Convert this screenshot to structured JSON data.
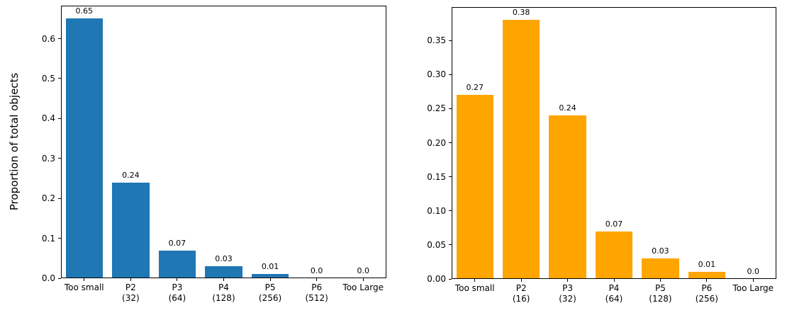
{
  "figure": {
    "background": "#ffffff",
    "axis_color": "#000000",
    "text_color": "#000000"
  },
  "chart_data": [
    {
      "type": "bar",
      "title": "",
      "xlabel": "",
      "ylabel": "Proportion of total objects",
      "bar_color": "#1f77b4",
      "categories": [
        [
          "Too small"
        ],
        [
          "P2",
          "(32)"
        ],
        [
          "P3",
          "(64)"
        ],
        [
          "P4",
          "(128)"
        ],
        [
          "P5",
          "(256)"
        ],
        [
          "P6",
          "(512)"
        ],
        [
          "Too Large"
        ]
      ],
      "values": [
        0.65,
        0.24,
        0.07,
        0.03,
        0.01,
        0.0,
        0.0
      ],
      "value_labels": [
        "0.65",
        "0.24",
        "0.07",
        "0.03",
        "0.01",
        "0.0",
        "0.0"
      ],
      "yticks": [
        0.0,
        0.1,
        0.2,
        0.3,
        0.4,
        0.5,
        0.6
      ],
      "ytick_labels": [
        "0.0",
        "0.1",
        "0.2",
        "0.3",
        "0.4",
        "0.5",
        "0.6"
      ],
      "ylim": [
        0,
        0.6825
      ],
      "grid": false,
      "legend": null
    },
    {
      "type": "bar",
      "title": "",
      "xlabel": "",
      "ylabel": "",
      "bar_color": "#ffa500",
      "categories": [
        [
          "Too small"
        ],
        [
          "P2",
          "(16)"
        ],
        [
          "P3",
          "(32)"
        ],
        [
          "P4",
          "(64)"
        ],
        [
          "P5",
          "(128)"
        ],
        [
          "P6",
          "(256)"
        ],
        [
          "Too Large"
        ]
      ],
      "values": [
        0.27,
        0.38,
        0.24,
        0.07,
        0.03,
        0.01,
        0.0
      ],
      "value_labels": [
        "0.27",
        "0.38",
        "0.24",
        "0.07",
        "0.03",
        "0.01",
        "0.0"
      ],
      "yticks": [
        0.0,
        0.05,
        0.1,
        0.15,
        0.2,
        0.25,
        0.3,
        0.35
      ],
      "ytick_labels": [
        "0.00",
        "0.05",
        "0.10",
        "0.15",
        "0.20",
        "0.25",
        "0.30",
        "0.35"
      ],
      "ylim": [
        0,
        0.399
      ],
      "grid": false,
      "legend": null
    }
  ]
}
